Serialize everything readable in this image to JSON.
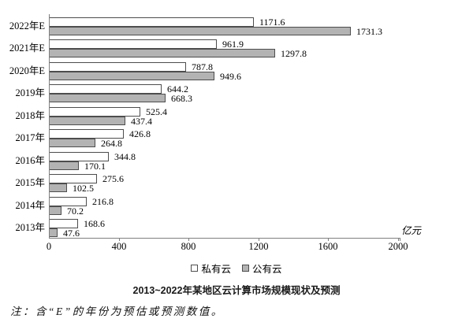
{
  "chart_data": {
    "type": "bar",
    "orientation": "horizontal",
    "title": "2013~2022年某地区云计算市场规模现状及预测",
    "unit_label": "亿元",
    "categories": [
      "2022年E",
      "2021年E",
      "2020年E",
      "2019年",
      "2018年",
      "2017年",
      "2016年",
      "2015年",
      "2014年",
      "2013年"
    ],
    "series": [
      {
        "name": "私有云",
        "color": "#ffffff",
        "values": [
          1171.6,
          961.9,
          787.8,
          644.2,
          525.4,
          426.8,
          344.8,
          275.6,
          216.8,
          168.6
        ]
      },
      {
        "name": "公有云",
        "color": "#b3b3b3",
        "values": [
          1731.3,
          1297.8,
          949.6,
          668.3,
          437.4,
          264.8,
          170.1,
          102.5,
          70.2,
          47.6
        ]
      }
    ],
    "x_ticks": [
      0,
      400,
      800,
      1200,
      1600,
      2000
    ],
    "xlim": [
      0,
      2000
    ],
    "grid": false,
    "legend_position": "bottom",
    "value_labels_shown": true
  },
  "note": "注：含“E”的年份为预估或预测数值。",
  "colors": {
    "bar_fill_public": "#b3b3b3",
    "bar_fill_private": "#ffffff",
    "bar_border": "#4d4d4d",
    "axis": "#7f7f7f",
    "text": "#000000"
  }
}
